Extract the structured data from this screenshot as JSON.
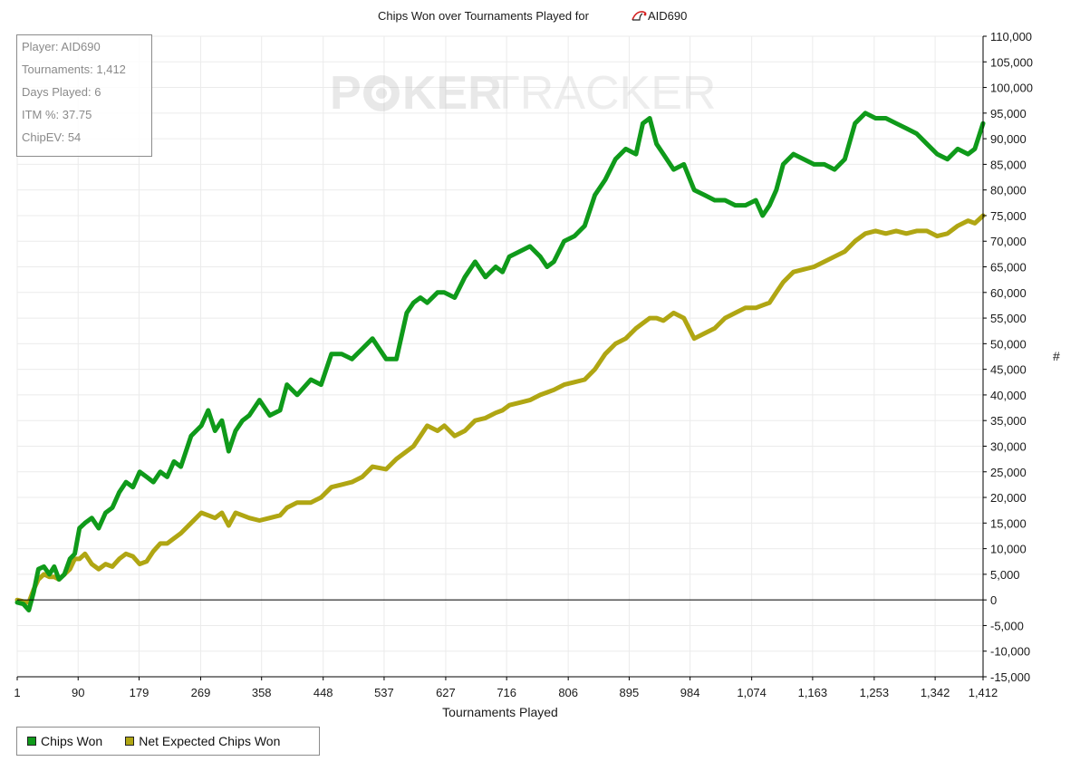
{
  "stats": {
    "lines": [
      "Player: AID690",
      "Tournaments: 1,412",
      "Days Played: 6",
      "ITM %: 37.75",
      "ChipEV: 54"
    ]
  },
  "watermark": {
    "part1": "P",
    "part2": "KER",
    "part3": "TRACKER"
  },
  "colors": {
    "chips_won": "#0f9a1a",
    "net_expected": "#b0a613",
    "zero_line": "#000000",
    "grid": "#ebebeb"
  },
  "chart_data": {
    "type": "line",
    "title": "Chips Won over Tournaments Played for",
    "title_player": "AID690",
    "xlabel": "Tournaments Played",
    "ylabel": "#",
    "xlim": [
      1,
      1412
    ],
    "ylim": [
      -15000,
      110000
    ],
    "x_ticks": [
      1,
      90,
      179,
      269,
      358,
      448,
      537,
      627,
      716,
      806,
      895,
      984,
      1074,
      1163,
      1253,
      1342,
      1412
    ],
    "x_tick_labels": [
      "1",
      "90",
      "179",
      "269",
      "358",
      "448",
      "537",
      "627",
      "716",
      "806",
      "895",
      "984",
      "1,074",
      "1,163",
      "1,253",
      "1,342",
      "1,412"
    ],
    "y_ticks": [
      -15000,
      -10000,
      -5000,
      0,
      5000,
      10000,
      15000,
      20000,
      25000,
      30000,
      35000,
      40000,
      45000,
      50000,
      55000,
      60000,
      65000,
      70000,
      75000,
      80000,
      85000,
      90000,
      95000,
      100000,
      105000,
      110000
    ],
    "y_tick_labels": [
      "-15,000",
      "-10,000",
      "-5,000",
      "0",
      "5,000",
      "10,000",
      "15,000",
      "20,000",
      "25,000",
      "30,000",
      "35,000",
      "40,000",
      "45,000",
      "50,000",
      "55,000",
      "60,000",
      "65,000",
      "70,000",
      "75,000",
      "80,000",
      "85,000",
      "90,000",
      "95,000",
      "100,000",
      "105,000",
      "110,000"
    ],
    "grid": true,
    "legend": "bottom-left",
    "series": [
      {
        "name": "Chips Won",
        "color": "#0f9a1a",
        "x": [
          1,
          10,
          18,
          25,
          32,
          40,
          48,
          55,
          62,
          70,
          78,
          85,
          92,
          100,
          110,
          120,
          130,
          140,
          150,
          160,
          170,
          180,
          190,
          200,
          210,
          220,
          230,
          240,
          255,
          270,
          280,
          290,
          300,
          310,
          320,
          330,
          340,
          355,
          370,
          385,
          395,
          410,
          430,
          445,
          460,
          475,
          490,
          505,
          520,
          540,
          555,
          570,
          580,
          590,
          600,
          615,
          625,
          640,
          655,
          670,
          685,
          700,
          710,
          720,
          735,
          750,
          765,
          775,
          785,
          800,
          815,
          830,
          845,
          860,
          875,
          890,
          905,
          915,
          925,
          935,
          945,
          960,
          975,
          990,
          1005,
          1020,
          1035,
          1050,
          1065,
          1080,
          1090,
          1100,
          1110,
          1120,
          1135,
          1150,
          1165,
          1180,
          1195,
          1210,
          1225,
          1240,
          1255,
          1270,
          1285,
          1300,
          1315,
          1330,
          1345,
          1360,
          1375,
          1390,
          1400,
          1412
        ],
        "y": [
          -500,
          -800,
          -2000,
          1500,
          6000,
          6500,
          5000,
          6500,
          4000,
          5000,
          8000,
          9000,
          14000,
          15000,
          16000,
          14000,
          17000,
          18000,
          21000,
          23000,
          22000,
          25000,
          24000,
          23000,
          25000,
          24000,
          27000,
          26000,
          32000,
          34000,
          37000,
          33000,
          35000,
          29000,
          33000,
          35000,
          36000,
          39000,
          36000,
          37000,
          42000,
          40000,
          43000,
          42000,
          48000,
          48000,
          47000,
          49000,
          51000,
          47000,
          47000,
          56000,
          58000,
          59000,
          58000,
          60000,
          60000,
          59000,
          63000,
          66000,
          63000,
          65000,
          64000,
          67000,
          68000,
          69000,
          67000,
          65000,
          66000,
          70000,
          71000,
          73000,
          79000,
          82000,
          86000,
          88000,
          87000,
          93000,
          94000,
          89000,
          87000,
          84000,
          85000,
          80000,
          79000,
          78000,
          78000,
          77000,
          77000,
          78000,
          75000,
          77000,
          80000,
          85000,
          87000,
          86000,
          85000,
          85000,
          84000,
          86000,
          93000,
          95000,
          94000,
          94000,
          93000,
          92000,
          91000,
          89000,
          87000,
          86000,
          88000,
          87000,
          88000,
          93000
        ]
      },
      {
        "name": "Net Expected Chips Won",
        "color": "#b0a613",
        "x": [
          1,
          10,
          18,
          25,
          32,
          40,
          48,
          55,
          62,
          70,
          78,
          85,
          92,
          100,
          110,
          120,
          130,
          140,
          150,
          160,
          170,
          180,
          190,
          200,
          210,
          220,
          230,
          240,
          255,
          270,
          280,
          290,
          300,
          310,
          320,
          330,
          340,
          355,
          370,
          385,
          395,
          410,
          430,
          445,
          460,
          475,
          490,
          505,
          520,
          540,
          555,
          570,
          580,
          590,
          600,
          615,
          625,
          640,
          655,
          670,
          685,
          700,
          710,
          720,
          735,
          750,
          765,
          775,
          785,
          800,
          815,
          830,
          845,
          860,
          875,
          890,
          905,
          915,
          925,
          935,
          945,
          960,
          975,
          990,
          1005,
          1020,
          1035,
          1050,
          1065,
          1080,
          1090,
          1100,
          1110,
          1120,
          1135,
          1150,
          1165,
          1180,
          1195,
          1210,
          1225,
          1240,
          1255,
          1270,
          1285,
          1300,
          1315,
          1330,
          1345,
          1360,
          1375,
          1390,
          1400,
          1412
        ],
        "y": [
          0,
          -300,
          -500,
          2000,
          4000,
          5000,
          4500,
          4500,
          4000,
          5000,
          6000,
          8000,
          8000,
          9000,
          7000,
          6000,
          7000,
          6500,
          8000,
          9000,
          8500,
          7000,
          7500,
          9500,
          11000,
          11000,
          12000,
          13000,
          15000,
          17000,
          16500,
          16000,
          17000,
          14500,
          17000,
          16500,
          16000,
          15500,
          16000,
          16500,
          18000,
          19000,
          19000,
          20000,
          22000,
          22500,
          23000,
          24000,
          26000,
          25500,
          27500,
          29000,
          30000,
          32000,
          34000,
          33000,
          34000,
          32000,
          33000,
          35000,
          35500,
          36500,
          37000,
          38000,
          38500,
          39000,
          40000,
          40500,
          41000,
          42000,
          42500,
          43000,
          45000,
          48000,
          50000,
          51000,
          53000,
          54000,
          55000,
          55000,
          54500,
          56000,
          55000,
          51000,
          52000,
          53000,
          55000,
          56000,
          57000,
          57000,
          57500,
          58000,
          60000,
          62000,
          64000,
          64500,
          65000,
          66000,
          67000,
          68000,
          70000,
          71500,
          72000,
          71500,
          72000,
          71500,
          72000,
          72000,
          71000,
          71500,
          73000,
          74000,
          73500,
          75000
        ]
      }
    ]
  }
}
